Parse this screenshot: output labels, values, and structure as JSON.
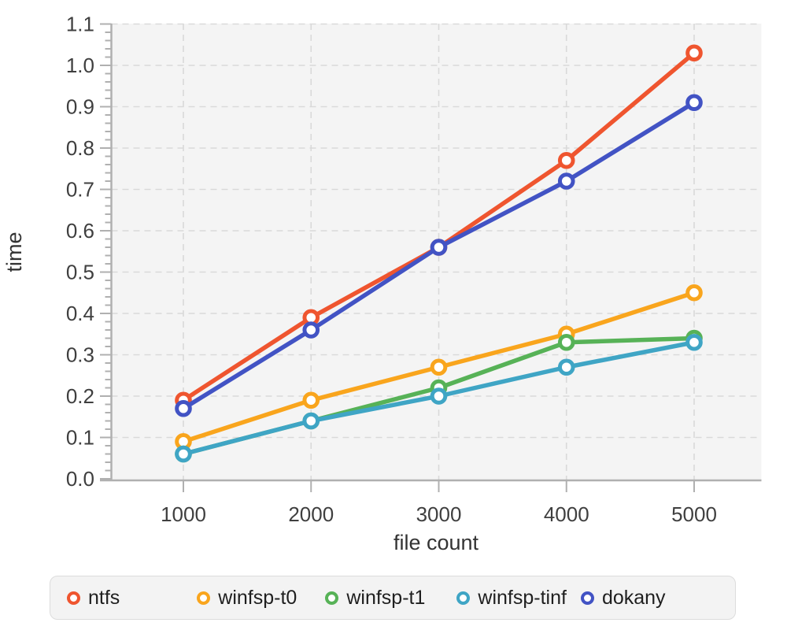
{
  "chart_data": {
    "type": "line",
    "x": [
      1000,
      2000,
      3000,
      4000,
      5000
    ],
    "xtick_labels": [
      "1000",
      "2000",
      "3000",
      "4000",
      "5000"
    ],
    "ytick_labels": [
      "0.0",
      "0.1",
      "0.2",
      "0.3",
      "0.4",
      "0.5",
      "0.6",
      "0.7",
      "0.8",
      "0.9",
      "1.0",
      "1.1"
    ],
    "ylim": [
      0,
      1.1
    ],
    "ytick_step": 0.1,
    "y_minor_step": 0.02,
    "grid": "dashed",
    "legend_position": "bottom",
    "xlabel": "file count",
    "ylabel": "time",
    "series": [
      {
        "name": "ntfs",
        "color": "#EF552F",
        "values": [
          0.19,
          0.39,
          0.56,
          0.77,
          1.03
        ]
      },
      {
        "name": "winfsp-t0",
        "color": "#F9A51D",
        "values": [
          0.09,
          0.19,
          0.27,
          0.35,
          0.45
        ]
      },
      {
        "name": "winfsp-t1",
        "color": "#57B257",
        "values": [
          0.06,
          0.14,
          0.22,
          0.33,
          0.34
        ]
      },
      {
        "name": "winfsp-tinf",
        "color": "#3FA5C5",
        "values": [
          0.06,
          0.14,
          0.2,
          0.27,
          0.33
        ]
      },
      {
        "name": "dokany",
        "color": "#4253C4",
        "values": [
          0.17,
          0.36,
          0.56,
          0.72,
          0.91
        ]
      }
    ],
    "colors": {
      "plot_background": "#f4f4f4",
      "gridline": "#d9d9d9",
      "spine": "#b0b0b0",
      "tick": "#b0b0b0",
      "marker_fill": "#ffffff"
    }
  }
}
